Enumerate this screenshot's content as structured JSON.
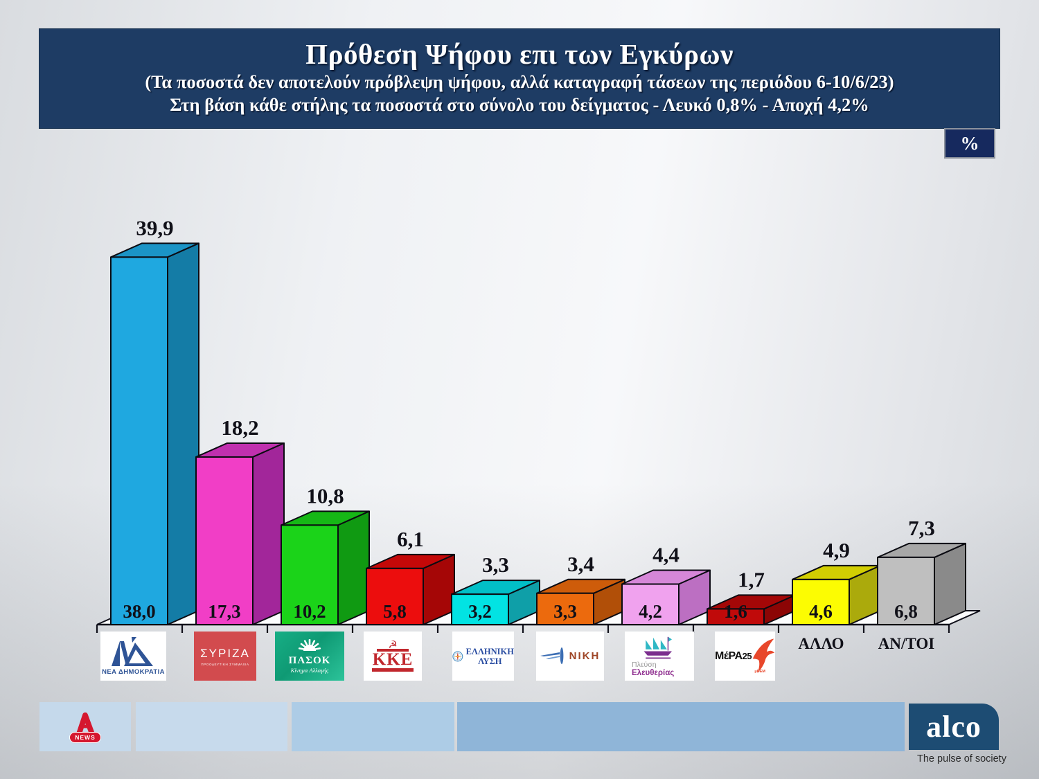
{
  "header": {
    "title": "Πρόθεση Ψήφου επι των Εγκύρων",
    "subtitle1": "(Τα ποσοστά δεν αποτελούν πρόβλεψη ψήφου, αλλά καταγραφή τάσεων της περιόδου  6-10/6/23)",
    "subtitle2": "Στη βάση κάθε στήλης τα ποσοστά στο σύνολο του δείγματος - Λευκό 0,8% - Αποχή 4,2%",
    "bg_color": "#1e3c64"
  },
  "unit_badge": {
    "label": "%"
  },
  "chart_data": {
    "type": "bar",
    "title": "Πρόθεση Ψήφου επι των Εγκύρων",
    "unit": "%",
    "grid": false,
    "ylim": [
      0,
      42
    ],
    "categories": [
      "ΝΕΑ ΔΗΜΟΚΡΑΤΙΑ",
      "ΣΥΡΙΖΑ",
      "ΠΑΣΟΚ",
      "ΚΚΕ",
      "ΕΛΛΗΝΙΚΗ ΛΥΣΗ",
      "ΝΙΚΗ",
      "ΠΛΕΥΣΗ ΕΛΕΥΘΕΡΙΑΣ",
      "ΜέΡΑ25",
      "ΑΛΛΟ",
      "ΑΝ/ΤΟΙ"
    ],
    "text_label_indexes": [
      8,
      9
    ],
    "series": [
      {
        "name": "Επί των εγκύρων (ετικέτα πάνω από τη στήλη)",
        "values": [
          39.9,
          18.2,
          10.8,
          6.1,
          3.3,
          3.4,
          4.4,
          1.7,
          4.9,
          7.3
        ],
        "labels": [
          "39,9",
          "18,2",
          "10,8",
          "6,1",
          "3,3",
          "3,4",
          "4,4",
          "1,7",
          "4,9",
          "7,3"
        ]
      },
      {
        "name": "Στο σύνολο του δείγματος (ετικέτα μέσα στη στήλη)",
        "values": [
          38.0,
          17.3,
          10.2,
          5.8,
          3.2,
          3.3,
          4.2,
          1.6,
          4.6,
          6.8
        ],
        "labels": [
          "38,0",
          "17,3",
          "10,2",
          "5,8",
          "3,2",
          "3,3",
          "4,2",
          "1,6",
          "4,6",
          "6,8"
        ]
      }
    ],
    "bar_colors": [
      {
        "front": "#1fa8e0",
        "side": "#147ca6",
        "top": "#1b94c6"
      },
      {
        "front": "#f13ec6",
        "side": "#a2269a",
        "top": "#c030ae"
      },
      {
        "front": "#1bd319",
        "side": "#109a12",
        "top": "#16b716"
      },
      {
        "front": "#ec0d0d",
        "side": "#a50606",
        "top": "#c40808"
      },
      {
        "front": "#02e3e3",
        "side": "#0f9fa8",
        "top": "#02bfc7"
      },
      {
        "front": "#ec6a0d",
        "side": "#b14f08",
        "top": "#ce5c0a"
      },
      {
        "front": "#f0a2ee",
        "side": "#bc6fc2",
        "top": "#d687d8"
      },
      {
        "front": "#c00a0a",
        "side": "#8c0505",
        "top": "#a40707"
      },
      {
        "front": "#fcfc02",
        "side": "#abaa0c",
        "top": "#d2ce02"
      },
      {
        "front": "#bfbfbf",
        "side": "#8a8a8a",
        "top": "#a7a7a7"
      }
    ]
  },
  "logos": {
    "nd": {
      "sub": "ΝΕΑ ΔΗΜΟΚΡΑΤΙΑ"
    },
    "syriza": {
      "text": "ΣΥΡΙΖΑ",
      "sub": "ΠΡΟΟΔΕΥΤΙΚΗ ΣΥΜΜΑΧΙΑ",
      "bg": "#d24b4e"
    },
    "pasok": {
      "text": "ΠΑΣΟΚ",
      "sub": "Κίνημα Αλλαγής",
      "bg": "#14a57e"
    },
    "kke": {
      "text": "ΚΚΕ",
      "color": "#c1272d"
    },
    "ellysi": {
      "line1": "ΕΛΛΗΝΙΚΗ",
      "line2": "ΛΥΣΗ",
      "color": "#2b4ea2"
    },
    "niki": {
      "text": "ΝΙΚΗ",
      "color": "#9e4526"
    },
    "plefsi": {
      "line1": "Πλεύση",
      "line2": "Ελευθερίας"
    },
    "mera25": {
      "text": "ΜέΡΑ",
      "num": "25",
      "sub": "μDEM",
      "accent": "#e8472b"
    }
  },
  "footer": {
    "alpha_news_label": "NEWS",
    "alco_label": "alco",
    "alco_tagline": "The pulse of society"
  }
}
